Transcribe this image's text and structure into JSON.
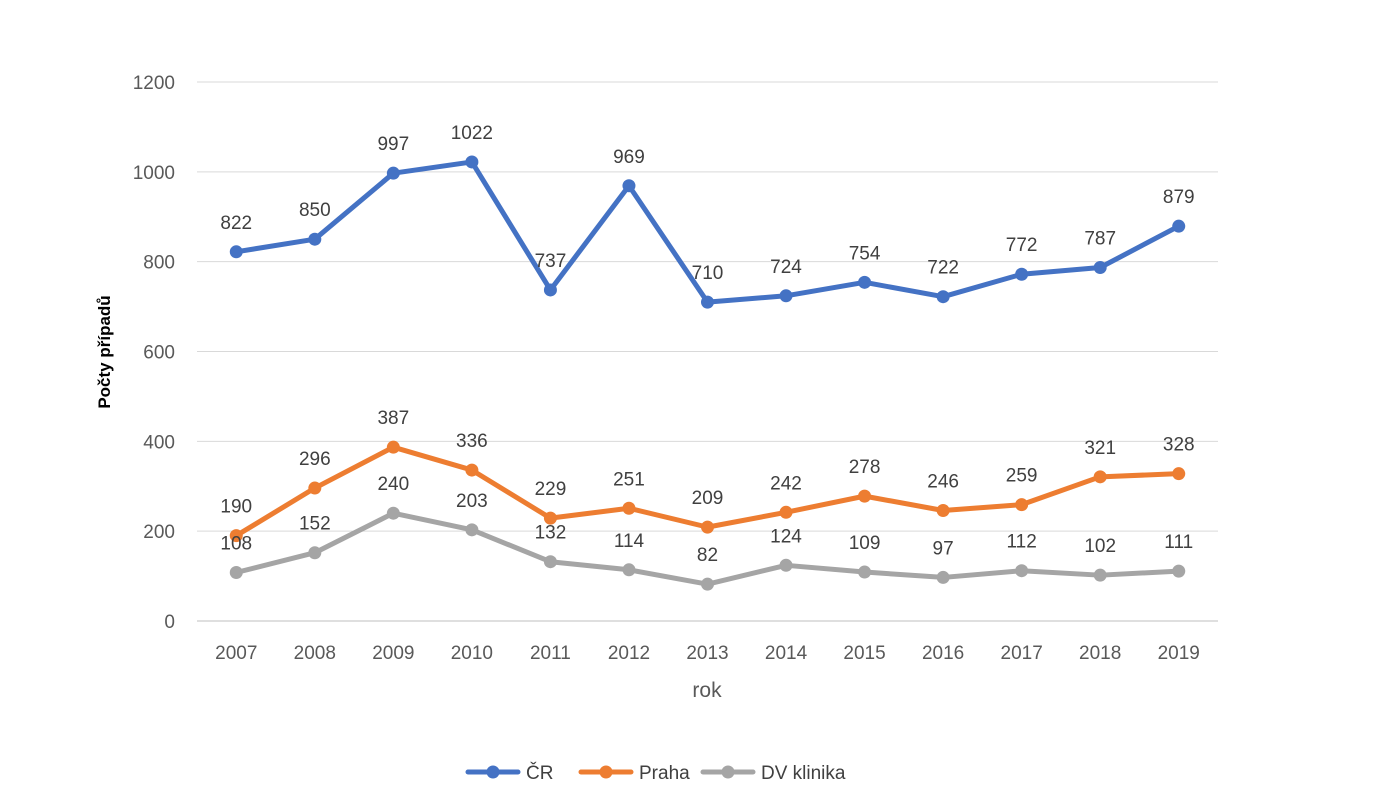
{
  "chart_data": {
    "type": "line",
    "xlabel": "rok",
    "ylabel": "Počty případů",
    "ylim": [
      0,
      1200
    ],
    "yticks": [
      0,
      200,
      400,
      600,
      800,
      1000,
      1200
    ],
    "grid": true,
    "legend_position": "bottom",
    "categories": [
      "2007",
      "2008",
      "2009",
      "2010",
      "2011",
      "2012",
      "2013",
      "2014",
      "2015",
      "2016",
      "2017",
      "2018",
      "2019"
    ],
    "series": [
      {
        "name": "ČR",
        "color": "#4472C4",
        "values": [
          822,
          850,
          997,
          1022,
          737,
          969,
          710,
          724,
          754,
          722,
          772,
          787,
          879
        ]
      },
      {
        "name": "Praha",
        "color": "#ED7D31",
        "values": [
          190,
          296,
          387,
          336,
          229,
          251,
          209,
          242,
          278,
          246,
          259,
          321,
          328
        ]
      },
      {
        "name": "DV klinika",
        "color": "#A5A5A5",
        "values": [
          108,
          152,
          240,
          203,
          132,
          114,
          82,
          124,
          109,
          97,
          112,
          102,
          111
        ]
      }
    ]
  }
}
